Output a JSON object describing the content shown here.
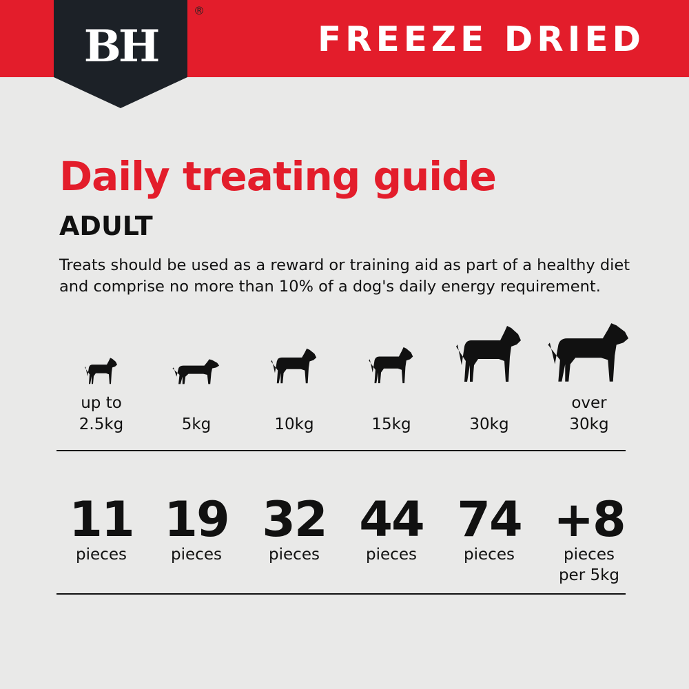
{
  "header": {
    "logo": "BH",
    "registered": "®",
    "title": "FREEZE DRIED",
    "colors": {
      "red": "#e31d2b",
      "navy": "#1c2127"
    }
  },
  "main": {
    "title": "Daily treating guide",
    "subtitle": "ADULT",
    "description": "Treats should be used as a reward or training aid as part of a healthy diet and comprise no more than 10% of a dog's daily energy requirement.",
    "columns": [
      {
        "icon": "small-dog-icon",
        "weight": "up to\n2.5kg",
        "amount": "11",
        "unit": "pieces"
      },
      {
        "icon": "dachshund-icon",
        "weight": "5kg",
        "amount": "19",
        "unit": "pieces"
      },
      {
        "icon": "bulldog-icon",
        "weight": "10kg",
        "amount": "32",
        "unit": "pieces"
      },
      {
        "icon": "terrier-icon",
        "weight": "15kg",
        "amount": "44",
        "unit": "pieces"
      },
      {
        "icon": "great-dane-icon",
        "weight": "30kg",
        "amount": "74",
        "unit": "pieces"
      },
      {
        "icon": "mastiff-icon",
        "weight": "over\n30kg",
        "amount": "+8",
        "unit": "pieces\nper 5kg"
      }
    ]
  }
}
